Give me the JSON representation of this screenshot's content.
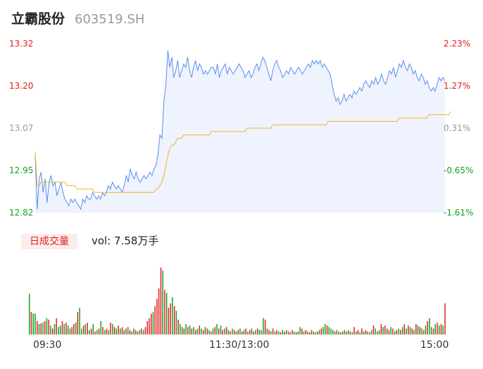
{
  "header": {
    "name": "立霸股份",
    "code": "603519.SH"
  },
  "colors": {
    "price_line": "#5b8def",
    "avg_line": "#f0b429",
    "up": "#e02020",
    "down": "#12a020",
    "flat": "#999999",
    "area_fill": "#eef3fd"
  },
  "volume_panel": {
    "tag": "日成交量",
    "label": "vol: 7.58万手"
  },
  "chart_data": {
    "type": "line",
    "title": "",
    "y_left_ticks": [
      "13.32",
      "13.20",
      "13.07",
      "12.95",
      "12.82"
    ],
    "y_right_ticks": [
      "2.23%",
      "1.27%",
      "0.31%",
      "-0.65%",
      "-1.61%"
    ],
    "x_ticks": [
      "09:30",
      "11:30/13:00",
      "15:00"
    ],
    "ylim": [
      12.82,
      13.32
    ],
    "prev_close": 13.05,
    "price": [
      12.99,
      12.83,
      12.92,
      12.94,
      12.88,
      12.92,
      12.85,
      12.91,
      12.93,
      12.9,
      12.91,
      12.87,
      12.89,
      12.91,
      12.88,
      12.86,
      12.85,
      12.84,
      12.86,
      12.85,
      12.86,
      12.85,
      12.84,
      12.83,
      12.86,
      12.85,
      12.87,
      12.86,
      12.86,
      12.88,
      12.87,
      12.86,
      12.87,
      12.86,
      12.88,
      12.87,
      12.88,
      12.9,
      12.89,
      12.91,
      12.9,
      12.89,
      12.9,
      12.89,
      12.88,
      12.9,
      12.93,
      12.91,
      12.95,
      12.93,
      12.92,
      12.94,
      12.92,
      12.91,
      12.92,
      12.93,
      12.92,
      12.93,
      12.94,
      12.93,
      12.95,
      12.96,
      12.99,
      13.05,
      13.04,
      13.15,
      13.2,
      13.3,
      13.25,
      13.28,
      13.22,
      13.24,
      13.27,
      13.22,
      13.24,
      13.26,
      13.25,
      13.28,
      13.24,
      13.22,
      13.25,
      13.27,
      13.24,
      13.26,
      13.25,
      13.23,
      13.24,
      13.23,
      13.24,
      13.25,
      13.25,
      13.23,
      13.26,
      13.22,
      13.24,
      13.25,
      13.26,
      13.23,
      13.25,
      13.24,
      13.23,
      13.24,
      13.25,
      13.26,
      13.25,
      13.24,
      13.22,
      13.23,
      13.24,
      13.22,
      13.23,
      13.25,
      13.26,
      13.24,
      13.26,
      13.28,
      13.27,
      13.25,
      13.23,
      13.21,
      13.24,
      13.26,
      13.27,
      13.25,
      13.24,
      13.22,
      13.23,
      13.24,
      13.23,
      13.25,
      13.24,
      13.23,
      13.24,
      13.25,
      13.24,
      13.23,
      13.24,
      13.25,
      13.26,
      13.25,
      13.27,
      13.26,
      13.27,
      13.26,
      13.27,
      13.25,
      13.26,
      13.25,
      13.24,
      13.23,
      13.2,
      13.17,
      13.15,
      13.16,
      13.14,
      13.15,
      13.17,
      13.15,
      13.16,
      13.17,
      13.16,
      13.18,
      13.17,
      13.18,
      13.19,
      13.18,
      13.2,
      13.21,
      13.2,
      13.19,
      13.21,
      13.2,
      13.22,
      13.2,
      13.21,
      13.23,
      13.21,
      13.2,
      13.22,
      13.24,
      13.23,
      13.25,
      13.22,
      13.24,
      13.26,
      13.25,
      13.27,
      13.25,
      13.24,
      13.26,
      13.25,
      13.23,
      13.24,
      13.22,
      13.21,
      13.23,
      13.22,
      13.2,
      13.21,
      13.19,
      13.18,
      13.19,
      13.18,
      13.2,
      13.22,
      13.21,
      13.22,
      13.21
    ],
    "avg_price": [
      13.0,
      12.9,
      12.9,
      12.91,
      12.91,
      12.91,
      12.91,
      12.91,
      12.91,
      12.91,
      12.91,
      12.91,
      12.91,
      12.91,
      12.91,
      12.91,
      12.9,
      12.9,
      12.9,
      12.9,
      12.9,
      12.89,
      12.89,
      12.89,
      12.89,
      12.89,
      12.89,
      12.89,
      12.89,
      12.89,
      12.88,
      12.88,
      12.88,
      12.88,
      12.88,
      12.88,
      12.88,
      12.88,
      12.88,
      12.88,
      12.88,
      12.88,
      12.88,
      12.88,
      12.88,
      12.88,
      12.88,
      12.88,
      12.88,
      12.88,
      12.88,
      12.88,
      12.88,
      12.88,
      12.88,
      12.88,
      12.88,
      12.88,
      12.88,
      12.88,
      12.88,
      12.89,
      12.89,
      12.9,
      12.91,
      12.93,
      12.96,
      12.99,
      13.01,
      13.02,
      13.02,
      13.03,
      13.04,
      13.04,
      13.04,
      13.05,
      13.05,
      13.05,
      13.05,
      13.05,
      13.05,
      13.05,
      13.05,
      13.05,
      13.05,
      13.05,
      13.05,
      13.05,
      13.05,
      13.06,
      13.06,
      13.06,
      13.06,
      13.06,
      13.06,
      13.06,
      13.06,
      13.06,
      13.06,
      13.06,
      13.06,
      13.06,
      13.06,
      13.06,
      13.06,
      13.06,
      13.06,
      13.07,
      13.07,
      13.07,
      13.07,
      13.07,
      13.07,
      13.07,
      13.07,
      13.07,
      13.07,
      13.07,
      13.07,
      13.07,
      13.08,
      13.08,
      13.08,
      13.08,
      13.08,
      13.08,
      13.08,
      13.08,
      13.08,
      13.08,
      13.08,
      13.08,
      13.08,
      13.08,
      13.08,
      13.08,
      13.08,
      13.08,
      13.08,
      13.08,
      13.08,
      13.08,
      13.08,
      13.08,
      13.08,
      13.08,
      13.08,
      13.08,
      13.09,
      13.09,
      13.09,
      13.09,
      13.09,
      13.09,
      13.09,
      13.09,
      13.09,
      13.09,
      13.09,
      13.09,
      13.09,
      13.09,
      13.09,
      13.09,
      13.09,
      13.09,
      13.09,
      13.09,
      13.09,
      13.09,
      13.09,
      13.09,
      13.09,
      13.09,
      13.09,
      13.09,
      13.09,
      13.09,
      13.09,
      13.09,
      13.09,
      13.09,
      13.09,
      13.09,
      13.1,
      13.1,
      13.1,
      13.1,
      13.1,
      13.1,
      13.1,
      13.1,
      13.1,
      13.1,
      13.1,
      13.1,
      13.1,
      13.1,
      13.1,
      13.11,
      13.11,
      13.11,
      13.11,
      13.11,
      13.11,
      13.11,
      13.11,
      13.11,
      13.11,
      13.11,
      13.12
    ],
    "volume": [
      55,
      30,
      28,
      28,
      18,
      14,
      15,
      16,
      18,
      22,
      20,
      12,
      8,
      14,
      22,
      10,
      12,
      18,
      14,
      16,
      12,
      8,
      10,
      14,
      16,
      30,
      36,
      8,
      12,
      14,
      16,
      6,
      8,
      14,
      4,
      6,
      8,
      18,
      10,
      6,
      8,
      6,
      16,
      14,
      10,
      8,
      12,
      8,
      10,
      6,
      8,
      10,
      6,
      4,
      8,
      6,
      4,
      6,
      8,
      6,
      10,
      18,
      22,
      28,
      30,
      38,
      48,
      62,
      90,
      86,
      60,
      56,
      36,
      42,
      50,
      38,
      32,
      20,
      14,
      10,
      8,
      14,
      10,
      12,
      8,
      10,
      6,
      8,
      12,
      8,
      6,
      10,
      8,
      6,
      4,
      8,
      10,
      14,
      8,
      12,
      6,
      8,
      10,
      6,
      4,
      8,
      6,
      4,
      6,
      8,
      4,
      6,
      8,
      4,
      6,
      8,
      4,
      6,
      8,
      6,
      6,
      22,
      20,
      8,
      6,
      4,
      8,
      4,
      6,
      4,
      3,
      6,
      4,
      6,
      4,
      3,
      6,
      4,
      3,
      4,
      10,
      8,
      4,
      6,
      4,
      3,
      6,
      4,
      3,
      4,
      6,
      8,
      10,
      14,
      12,
      10,
      8,
      6,
      4,
      6,
      4,
      3,
      4,
      6,
      4,
      6,
      4,
      3,
      10,
      4,
      6,
      3,
      8,
      4,
      6,
      4,
      3,
      6,
      12,
      8,
      4,
      6,
      14,
      10,
      12,
      8,
      6,
      10,
      8,
      4,
      6,
      8,
      6,
      10,
      14,
      8,
      12,
      10,
      8,
      6,
      14,
      12,
      10,
      8,
      6,
      12,
      18,
      22,
      10,
      8,
      14,
      16,
      12,
      14,
      12,
      42
    ],
    "volume_colors": [
      "down",
      "up",
      "down",
      "down",
      "up",
      "down",
      "up",
      "down",
      "up",
      "down",
      "up",
      "down",
      "up",
      "down",
      "up",
      "down",
      "down",
      "up",
      "down",
      "up",
      "down",
      "down",
      "up",
      "up",
      "down",
      "up",
      "down",
      "down",
      "up",
      "down",
      "up",
      "down",
      "up",
      "down",
      "up",
      "down",
      "up",
      "down",
      "up",
      "down",
      "up",
      "down",
      "up",
      "down",
      "up",
      "down",
      "up",
      "down",
      "up",
      "down",
      "up",
      "down",
      "up",
      "down",
      "up",
      "down",
      "up",
      "down",
      "up",
      "down",
      "up",
      "up",
      "up",
      "up",
      "down",
      "up",
      "up",
      "up",
      "up",
      "down",
      "up",
      "down",
      "up",
      "up",
      "down",
      "up",
      "down",
      "up",
      "down",
      "down",
      "up",
      "down",
      "up",
      "down",
      "up",
      "down",
      "up",
      "down",
      "up",
      "down",
      "up",
      "down",
      "up",
      "down",
      "up",
      "down",
      "up",
      "down",
      "up",
      "down",
      "up",
      "down",
      "up",
      "down",
      "up",
      "down",
      "up",
      "down",
      "up",
      "down",
      "up",
      "down",
      "up",
      "down",
      "up",
      "down",
      "up",
      "down",
      "up",
      "down",
      "down",
      "down",
      "up",
      "down",
      "up",
      "down",
      "up",
      "down",
      "up",
      "down",
      "up",
      "down",
      "up",
      "down",
      "up",
      "down",
      "up",
      "down",
      "up",
      "down",
      "down",
      "up",
      "down",
      "up",
      "down",
      "up",
      "down",
      "up",
      "down",
      "up",
      "down",
      "up",
      "down",
      "down",
      "up",
      "down",
      "down",
      "down",
      "up",
      "down",
      "up",
      "down",
      "up",
      "down",
      "up",
      "down",
      "up",
      "down",
      "up",
      "down",
      "up",
      "down",
      "up",
      "down",
      "up",
      "down",
      "up",
      "down",
      "up",
      "down",
      "up",
      "down",
      "up",
      "down",
      "up",
      "down",
      "up",
      "down",
      "up",
      "down",
      "up",
      "down",
      "up",
      "down",
      "up",
      "down",
      "up",
      "down",
      "up",
      "down",
      "up",
      "down",
      "up",
      "down",
      "up",
      "down",
      "up",
      "down",
      "down",
      "up",
      "down",
      "up",
      "down",
      "up",
      "down",
      "up",
      "up",
      "down"
    ]
  }
}
